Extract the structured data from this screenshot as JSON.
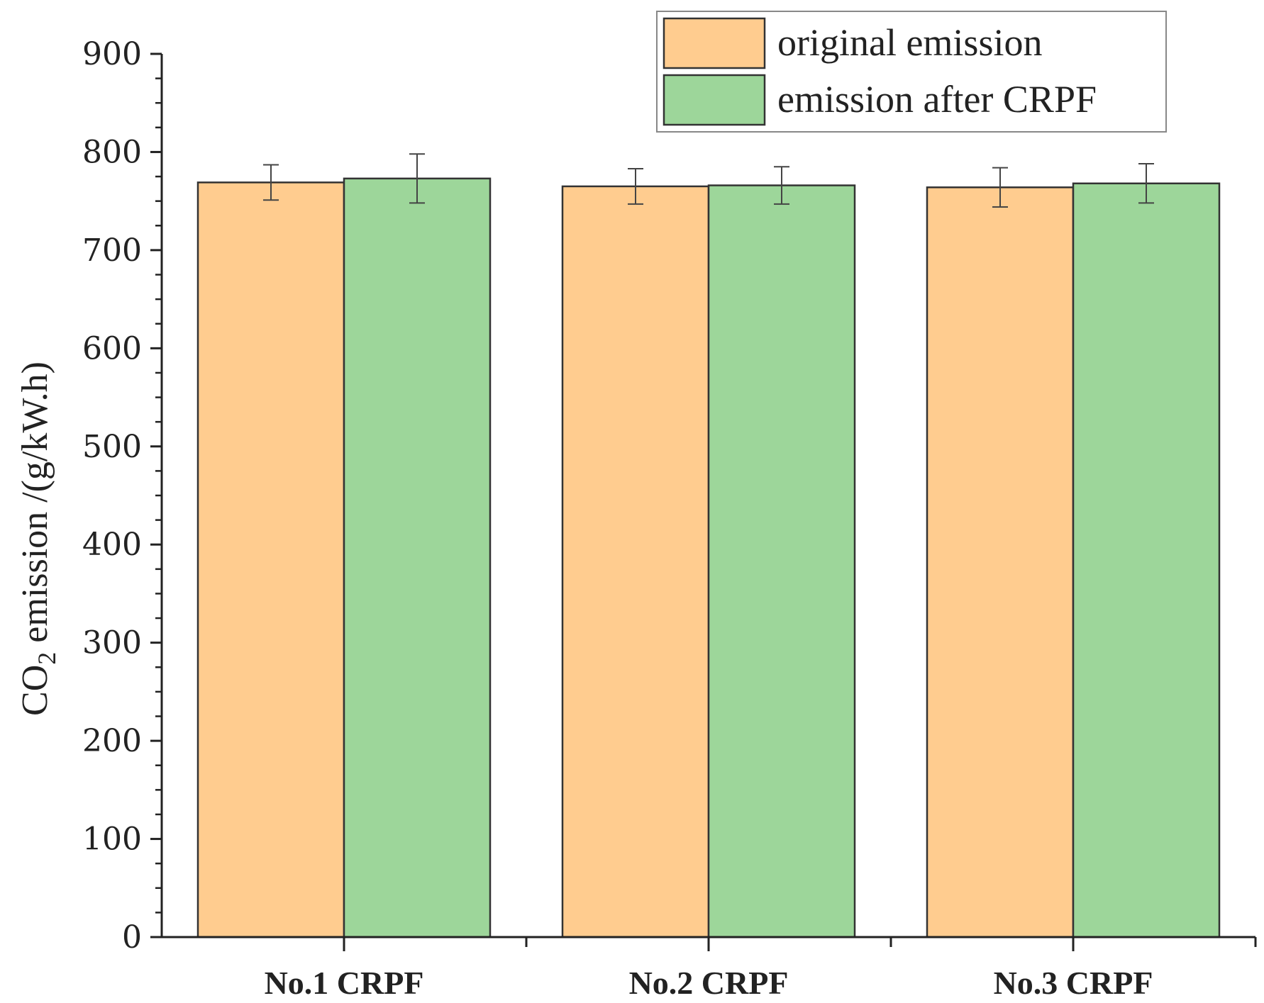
{
  "chart_data": {
    "type": "bar",
    "title": "",
    "xlabel": "",
    "ylabel": {
      "prefix": "CO",
      "subscript": "2",
      "suffix": " emission /(g/kW.h)"
    },
    "ylim": [
      0,
      900
    ],
    "yticks": [
      0,
      100,
      200,
      300,
      400,
      500,
      600,
      700,
      800,
      900
    ],
    "categories": [
      "No.1 CRPF",
      "No.2 CRPF",
      "No.3 CRPF"
    ],
    "series": [
      {
        "name": "original emission",
        "color": "#FFCC8F",
        "values": [
          769,
          765,
          764
        ],
        "errors": [
          18,
          18,
          20
        ]
      },
      {
        "name": "emission after CRPF",
        "color": "#9DD69A",
        "values": [
          773,
          766,
          768
        ],
        "errors": [
          25,
          19,
          20
        ]
      }
    ],
    "legend_position": "top-right",
    "grid": false,
    "error_bars": true
  }
}
